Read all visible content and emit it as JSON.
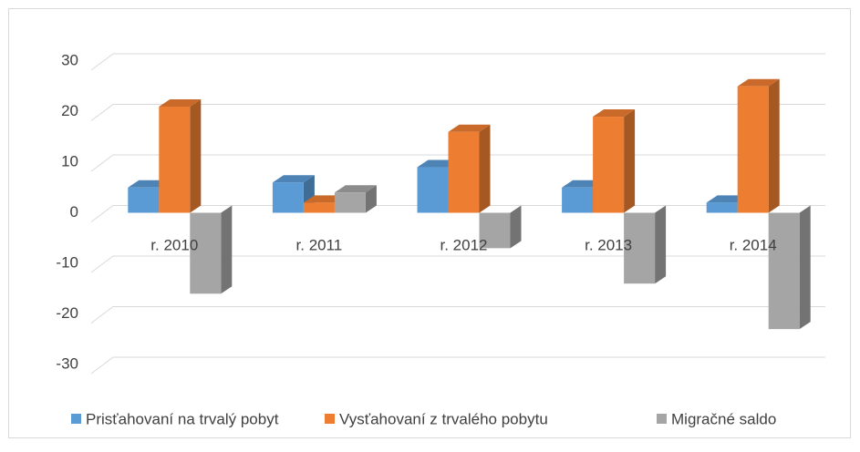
{
  "chart_data": {
    "type": "bar3d",
    "categories": [
      "r. 2010",
      "r. 2011",
      "r. 2012",
      "r. 2013",
      "r. 2014"
    ],
    "series": [
      {
        "name": "Prisťahovaní na trvalý pobyt",
        "color": "#5b9bd5",
        "values": [
          5,
          6,
          9,
          5,
          2
        ]
      },
      {
        "name": "Vysťahovaní z trvalého pobytu",
        "color": "#ed7d31",
        "values": [
          21,
          2,
          16,
          19,
          25
        ]
      },
      {
        "name": "Migračné saldo",
        "color": "#a5a5a5",
        "values": [
          -16,
          4,
          -7,
          -14,
          -23
        ]
      }
    ],
    "ylim": [
      -30,
      30
    ],
    "yticks": [
      -30,
      -20,
      -10,
      0,
      10,
      20,
      30
    ],
    "grid": true,
    "legend": "bottom"
  }
}
